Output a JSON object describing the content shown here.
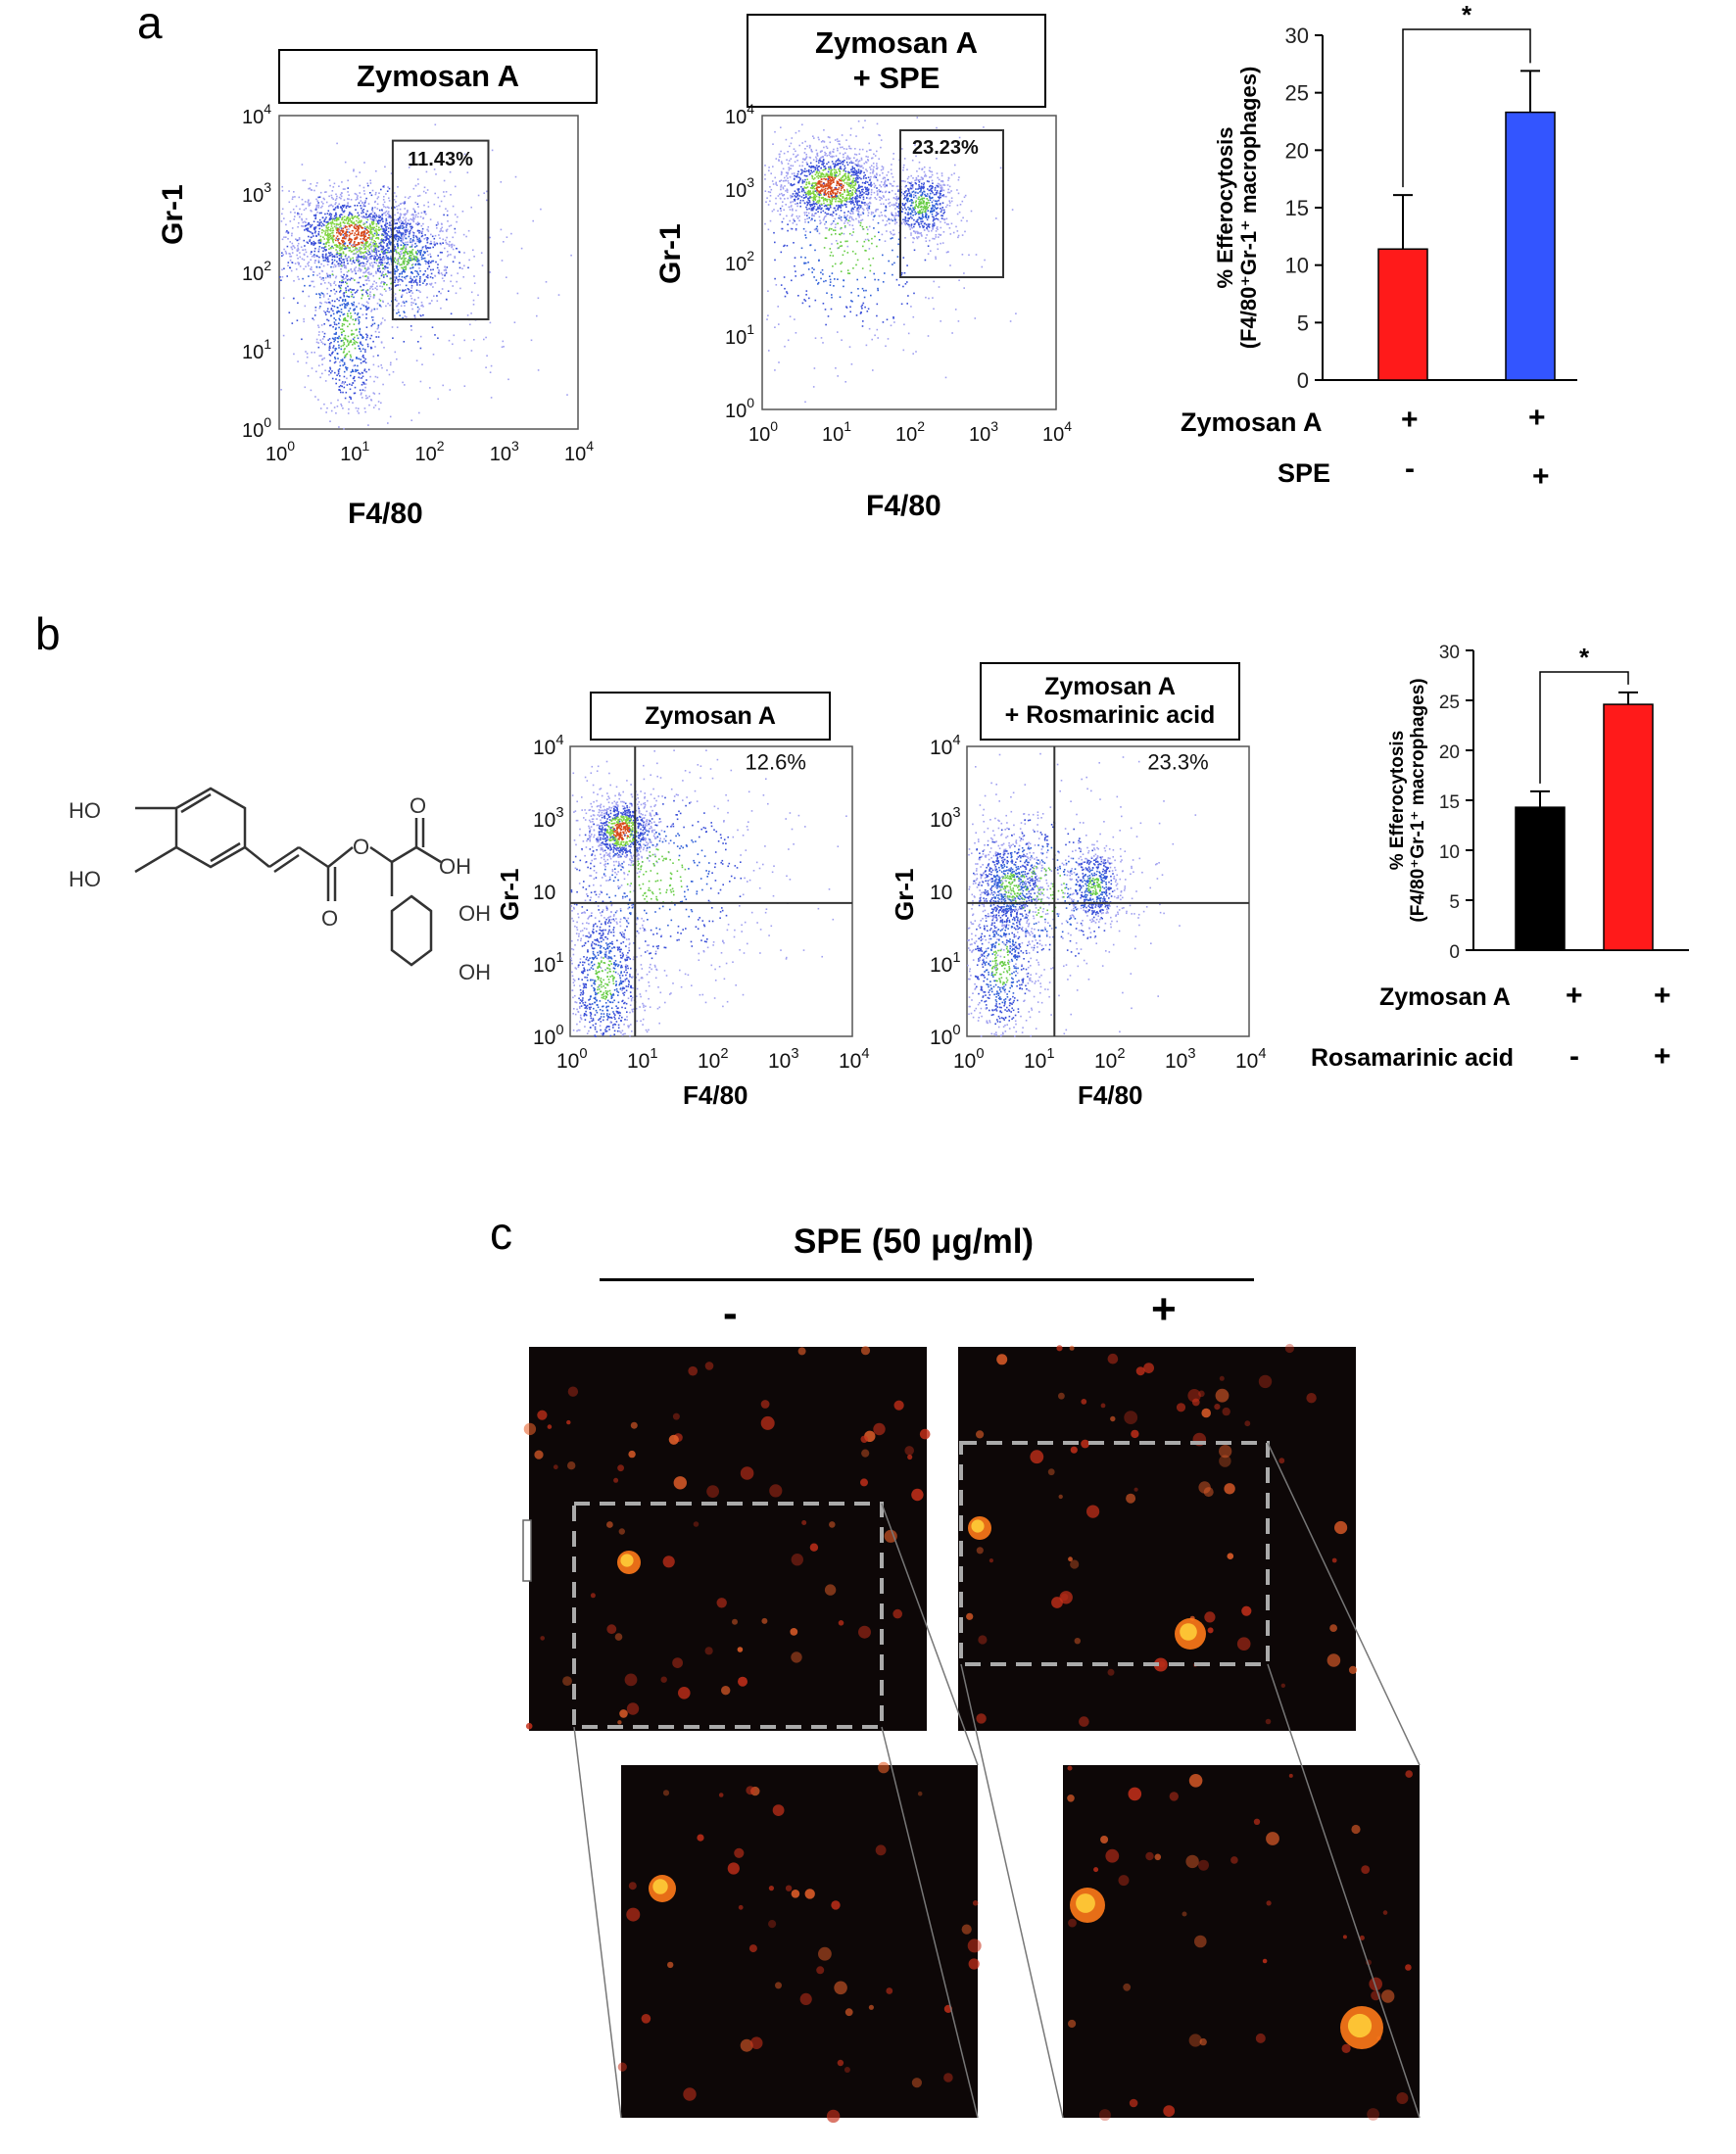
{
  "panels": {
    "a": {
      "label": "a",
      "flow_left": {
        "title": "Zymosan A",
        "gate_pct": "11.43%",
        "ylabel": "Gr-1",
        "xlabel": "F4/80"
      },
      "flow_right": {
        "title_line1": "Zymosan A",
        "title_line2": "+ SPE",
        "gate_pct": "23.23%",
        "ylabel": "Gr-1",
        "xlabel": "F4/80"
      },
      "ticks_y": [
        {
          "base": "10",
          "exp": "4"
        },
        {
          "base": "10",
          "exp": "3"
        },
        {
          "base": "10",
          "exp": "2"
        },
        {
          "base": "10",
          "exp": "1"
        },
        {
          "base": "10",
          "exp": "0"
        }
      ],
      "ticks_x": [
        {
          "base": "10",
          "exp": "0"
        },
        {
          "base": "10",
          "exp": "1"
        },
        {
          "base": "10",
          "exp": "2"
        },
        {
          "base": "10",
          "exp": "3"
        },
        {
          "base": "10",
          "exp": "4"
        }
      ],
      "rows": [
        {
          "label": "Zymosan A",
          "values": [
            "+",
            "+"
          ]
        },
        {
          "label": "SPE",
          "values": [
            "-",
            "+"
          ]
        }
      ]
    },
    "b": {
      "label": "b",
      "flow_left": {
        "title": "Zymosan  A",
        "gate_pct": "12.6%",
        "ylabel": "Gr-1",
        "xlabel": "F4/80"
      },
      "flow_right": {
        "title_line1": "Zymosan  A",
        "title_line2": "+ Rosmarinic acid",
        "gate_pct": "23.3%",
        "ylabel": "Gr-1",
        "xlabel": "F4/80"
      },
      "ticks_y": [
        {
          "base": "10",
          "exp": "4"
        },
        {
          "base": "10",
          "exp": "3"
        },
        {
          "base": "10",
          "exp": ""
        },
        {
          "base": "10",
          "exp": "1"
        },
        {
          "base": "10",
          "exp": "0"
        }
      ],
      "ticks_x": [
        {
          "base": "10",
          "exp": "0"
        },
        {
          "base": "10",
          "exp": "1"
        },
        {
          "base": "10",
          "exp": "2"
        },
        {
          "base": "10",
          "exp": "3"
        },
        {
          "base": "10",
          "exp": "4"
        }
      ],
      "structure_labels": {
        "ho1": "HO",
        "ho2": "HO",
        "o_ester": "O",
        "o_carbonyl1": "O",
        "o_acid": "O",
        "oh_acid": "OH",
        "oh1": "OH",
        "oh2": "OH"
      },
      "rows": [
        {
          "label": "Zymosan  A",
          "values": [
            "+",
            "+"
          ]
        },
        {
          "label": "Rosamarinic acid",
          "values": [
            "-",
            "+"
          ]
        }
      ]
    },
    "c": {
      "label": "c",
      "header": "SPE (50 μg/ml)",
      "minus": "-",
      "plus": "+"
    }
  },
  "chart_data": [
    {
      "type": "bar",
      "panel": "a",
      "categories": [
        "Zymosan A",
        "Zymosan A + SPE"
      ],
      "values": [
        11.4,
        23.3
      ],
      "errors": [
        4.7,
        3.6
      ],
      "colors": [
        "#ff1a1a",
        "#3355ff"
      ],
      "ylabel_line1": "% Efferocytosis",
      "ylabel_line2": "(F4/80⁺Gr-1⁺ macrophages)",
      "ylim": [
        0,
        30
      ],
      "yticks": [
        0,
        5,
        10,
        15,
        20,
        25,
        30
      ],
      "significance": "*"
    },
    {
      "type": "bar",
      "panel": "b",
      "categories": [
        "Zymosan A",
        "Zymosan A + Rosmarinic acid"
      ],
      "values": [
        14.3,
        24.6
      ],
      "errors": [
        1.6,
        1.2
      ],
      "colors": [
        "#000000",
        "#ff1a1a"
      ],
      "ylabel_line1": "% Efferocytosis",
      "ylabel_line2": "(F4/80⁺Gr-1⁺ macrophages)",
      "ylim": [
        0,
        30
      ],
      "yticks": [
        0,
        5,
        10,
        15,
        20,
        25,
        30
      ],
      "significance": "*"
    }
  ]
}
